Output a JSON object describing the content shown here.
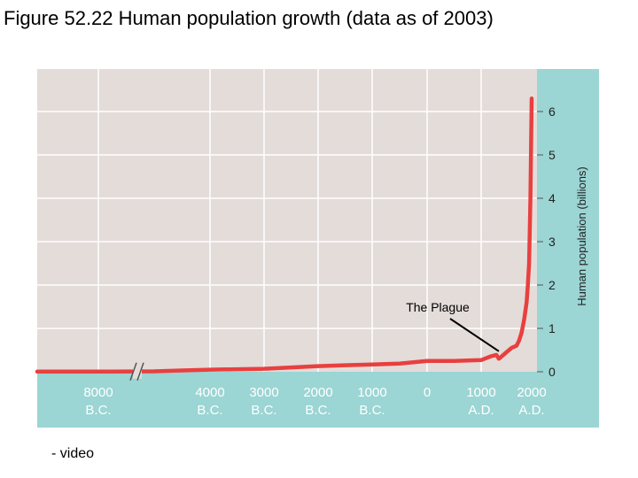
{
  "figure_title": "Figure 52.22 Human population growth (data as of 2003)",
  "footnote": "- video",
  "colors": {
    "plot_background": "#e3dcd9",
    "panel": "#9bd5d4",
    "line": "#e8403f",
    "grid": "#ffffff"
  },
  "chart_data": {
    "type": "line",
    "title": "",
    "xlabel": "",
    "ylabel": "Human population (billions)",
    "ylim": [
      0,
      6
    ],
    "yticks": [
      "0",
      "1",
      "2",
      "3",
      "4",
      "5",
      "6"
    ],
    "grid": true,
    "axis_break_after": "8000 B.C.",
    "xticks": [
      {
        "year": -8000,
        "line1": "8000",
        "line2": "B.C."
      },
      {
        "year": -4000,
        "line1": "4000",
        "line2": "B.C."
      },
      {
        "year": -3000,
        "line1": "3000",
        "line2": "B.C."
      },
      {
        "year": -2000,
        "line1": "2000",
        "line2": "B.C."
      },
      {
        "year": -1000,
        "line1": "1000",
        "line2": "B.C."
      },
      {
        "year": 0,
        "line1": "0",
        "line2": ""
      },
      {
        "year": 1000,
        "line1": "1000",
        "line2": "A.D."
      },
      {
        "year": 2000,
        "line1": "2000",
        "line2": "A.D."
      }
    ],
    "series": [
      {
        "x": [
          -8000,
          -6000,
          -5000,
          -4000,
          -3000,
          -2500,
          -2000,
          -1500,
          -1000,
          -500,
          0,
          500,
          1000,
          1200,
          1300,
          1350,
          1400,
          1500,
          1600,
          1700,
          1750,
          1800,
          1850,
          1900,
          1925,
          1950,
          1975,
          2003
        ],
        "y": [
          0.005,
          0.01,
          0.03,
          0.05,
          0.07,
          0.1,
          0.13,
          0.15,
          0.17,
          0.19,
          0.25,
          0.25,
          0.27,
          0.36,
          0.39,
          0.3,
          0.35,
          0.45,
          0.55,
          0.6,
          0.72,
          0.9,
          1.2,
          1.6,
          2.0,
          2.5,
          4.0,
          6.3
        ]
      }
    ],
    "annotations": [
      {
        "text": "The Plague",
        "x": 1350,
        "y": 0.35
      }
    ]
  }
}
